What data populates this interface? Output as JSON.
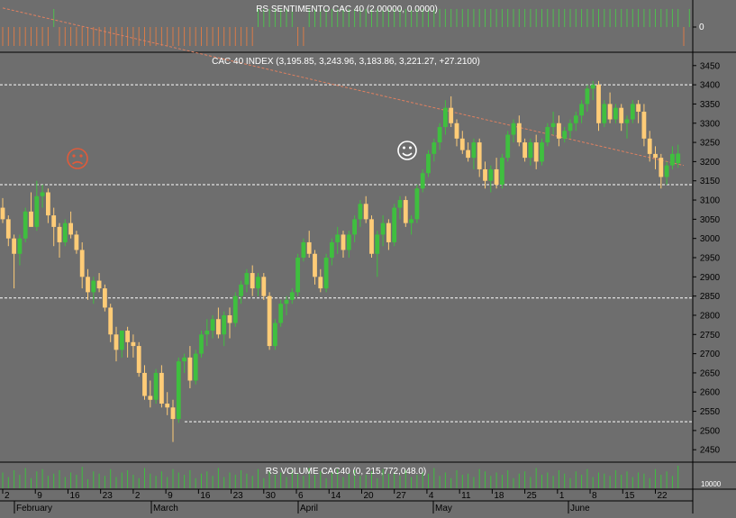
{
  "colors": {
    "background": "#6e6e6e",
    "up": "#3fbf3f",
    "down": "#ffcc77",
    "sentiment_pos": "#4fbf4f",
    "sentiment_neg": "#d97b48",
    "volume": "#3fbf3f",
    "trendline": "#e08060",
    "guide": "#ffffff",
    "frown": "#e05a3a",
    "smile": "#ffffff"
  },
  "icons": {
    "frown": "frown-face-icon",
    "smile": "smile-face-icon"
  },
  "chart_data": [
    {
      "type": "bar",
      "title": "RS SENTIMENTO CAC 40 (2.00000, 0.0000)",
      "y_tick_labels": [
        "0"
      ],
      "values": [
        -1,
        -1,
        -1,
        -1,
        -1,
        -1,
        -1,
        -1,
        -1,
        1,
        -1,
        -1,
        -1,
        -1,
        -1,
        -1,
        -1,
        -1,
        -1,
        -1,
        -1,
        -1,
        -1,
        -1,
        -1,
        -1,
        -1,
        -1,
        -1,
        -1,
        -1,
        -1,
        -1,
        -1,
        -1,
        -1,
        -1,
        -1,
        -1,
        -1,
        -1,
        -1,
        -1,
        -1,
        -1,
        1,
        1,
        1,
        1,
        1,
        1,
        1,
        -1,
        -1,
        1,
        1,
        1,
        1,
        1,
        1,
        1,
        1,
        1,
        1,
        1,
        1,
        1,
        1,
        1,
        1,
        1,
        1,
        1,
        1,
        1,
        1,
        1,
        1,
        1,
        1,
        1,
        1,
        1,
        1,
        1,
        1,
        1,
        1,
        1,
        1,
        1,
        1,
        1,
        1,
        1,
        1,
        1,
        1,
        1,
        1,
        1,
        1,
        1,
        1,
        1,
        1,
        1,
        1,
        1,
        1,
        1,
        1,
        1,
        1,
        1,
        1,
        1,
        1,
        1,
        1,
        -1,
        1
      ]
    },
    {
      "type": "candlestick",
      "title": "CAC 40 INDEX (3,195.85, 3,243.96, 3,183.86, 3,221.27, +27.2100)",
      "y_tick_labels": [
        "3450",
        "3400",
        "3350",
        "3300",
        "3250",
        "3200",
        "3150",
        "3100",
        "3050",
        "3000",
        "2950",
        "2900",
        "2850",
        "2800",
        "2750",
        "2700",
        "2650",
        "2600",
        "2550",
        "2500",
        "2450"
      ],
      "ylim": [
        2420,
        3480
      ],
      "x_tick_labels": [
        "2",
        "9",
        "16",
        "23",
        "2",
        "9",
        "16",
        "23",
        "30",
        "6",
        "14",
        "20",
        "27",
        "4",
        "11",
        "18",
        "25",
        "1",
        "8",
        "15",
        "22"
      ],
      "month_labels": [
        "February",
        "March",
        "April",
        "May",
        "June"
      ],
      "horizontal_levels": [
        3400,
        3140,
        2845,
        2523
      ],
      "trendline": {
        "from": [
          0,
          3600
        ],
        "to": [
          120,
          3190
        ]
      },
      "candles": [
        [
          3080,
          3105,
          3040,
          3050
        ],
        [
          3050,
          3060,
          2980,
          3000
        ],
        [
          3000,
          3010,
          2870,
          2960
        ],
        [
          2960,
          3010,
          2930,
          3000
        ],
        [
          3000,
          3080,
          2990,
          3070
        ],
        [
          3070,
          3120,
          3040,
          3030
        ],
        [
          3030,
          3150,
          3020,
          3110
        ],
        [
          3110,
          3140,
          3080,
          3120
        ],
        [
          3120,
          3130,
          3040,
          3060
        ],
        [
          3060,
          3080,
          2980,
          3030
        ],
        [
          3030,
          3040,
          2950,
          2990
        ],
        [
          2990,
          3050,
          2980,
          3040
        ],
        [
          3040,
          3070,
          3000,
          3010
        ],
        [
          3010,
          3020,
          2960,
          2970
        ],
        [
          2970,
          2990,
          2870,
          2900
        ],
        [
          2900,
          2920,
          2840,
          2860
        ],
        [
          2860,
          2900,
          2830,
          2890
        ],
        [
          2890,
          2910,
          2860,
          2870
        ],
        [
          2870,
          2880,
          2810,
          2820
        ],
        [
          2820,
          2830,
          2730,
          2750
        ],
        [
          2750,
          2770,
          2680,
          2710
        ],
        [
          2710,
          2760,
          2690,
          2760
        ],
        [
          2760,
          2770,
          2690,
          2730
        ],
        [
          2730,
          2750,
          2690,
          2720
        ],
        [
          2720,
          2730,
          2640,
          2650
        ],
        [
          2650,
          2670,
          2580,
          2590
        ],
        [
          2590,
          2630,
          2560,
          2580
        ],
        [
          2580,
          2660,
          2570,
          2650
        ],
        [
          2650,
          2670,
          2560,
          2570
        ],
        [
          2570,
          2600,
          2540,
          2560
        ],
        [
          2560,
          2580,
          2470,
          2530
        ],
        [
          2530,
          2690,
          2520,
          2680
        ],
        [
          2680,
          2700,
          2650,
          2690
        ],
        [
          2690,
          2720,
          2610,
          2630
        ],
        [
          2630,
          2710,
          2620,
          2700
        ],
        [
          2700,
          2760,
          2690,
          2750
        ],
        [
          2750,
          2790,
          2720,
          2760
        ],
        [
          2760,
          2800,
          2740,
          2790
        ],
        [
          2790,
          2820,
          2740,
          2750
        ],
        [
          2750,
          2810,
          2720,
          2800
        ],
        [
          2800,
          2820,
          2740,
          2780
        ],
        [
          2780,
          2860,
          2770,
          2850
        ],
        [
          2850,
          2890,
          2830,
          2880
        ],
        [
          2880,
          2920,
          2860,
          2910
        ],
        [
          2910,
          2930,
          2850,
          2870
        ],
        [
          2870,
          2910,
          2850,
          2900
        ],
        [
          2900,
          2910,
          2840,
          2850
        ],
        [
          2850,
          2860,
          2710,
          2720
        ],
        [
          2720,
          2790,
          2710,
          2780
        ],
        [
          2780,
          2840,
          2770,
          2830
        ],
        [
          2830,
          2850,
          2800,
          2840
        ],
        [
          2840,
          2870,
          2830,
          2860
        ],
        [
          2860,
          2960,
          2850,
          2950
        ],
        [
          2950,
          3000,
          2940,
          2990
        ],
        [
          2990,
          3020,
          2950,
          2960
        ],
        [
          2960,
          2970,
          2880,
          2900
        ],
        [
          2900,
          2920,
          2860,
          2870
        ],
        [
          2870,
          2960,
          2860,
          2950
        ],
        [
          2950,
          3000,
          2930,
          2990
        ],
        [
          2990,
          3030,
          2960,
          3010
        ],
        [
          3010,
          3020,
          2950,
          2970
        ],
        [
          2970,
          3020,
          2950,
          3010
        ],
        [
          3010,
          3060,
          2990,
          3050
        ],
        [
          3050,
          3100,
          3030,
          3090
        ],
        [
          3090,
          3110,
          3040,
          3050
        ],
        [
          3050,
          3060,
          2950,
          2960
        ],
        [
          2960,
          3020,
          2900,
          3010
        ],
        [
          3010,
          3060,
          2980,
          3040
        ],
        [
          3040,
          3050,
          2970,
          2990
        ],
        [
          2990,
          3090,
          2980,
          3080
        ],
        [
          3080,
          3110,
          3050,
          3100
        ],
        [
          3100,
          3110,
          3030,
          3040
        ],
        [
          3040,
          3060,
          3010,
          3050
        ],
        [
          3050,
          3140,
          3040,
          3130
        ],
        [
          3130,
          3180,
          3120,
          3170
        ],
        [
          3170,
          3230,
          3160,
          3220
        ],
        [
          3220,
          3260,
          3200,
          3250
        ],
        [
          3250,
          3300,
          3230,
          3290
        ],
        [
          3290,
          3360,
          3270,
          3340
        ],
        [
          3340,
          3370,
          3290,
          3300
        ],
        [
          3300,
          3310,
          3240,
          3260
        ],
        [
          3260,
          3280,
          3220,
          3230
        ],
        [
          3230,
          3250,
          3200,
          3210
        ],
        [
          3210,
          3260,
          3180,
          3250
        ],
        [
          3250,
          3260,
          3160,
          3180
        ],
        [
          3180,
          3200,
          3130,
          3150
        ],
        [
          3150,
          3190,
          3120,
          3180
        ],
        [
          3180,
          3210,
          3130,
          3140
        ],
        [
          3140,
          3220,
          3130,
          3210
        ],
        [
          3210,
          3280,
          3200,
          3270
        ],
        [
          3270,
          3310,
          3250,
          3300
        ],
        [
          3300,
          3320,
          3240,
          3250
        ],
        [
          3250,
          3260,
          3200,
          3210
        ],
        [
          3210,
          3260,
          3190,
          3250
        ],
        [
          3250,
          3270,
          3180,
          3200
        ],
        [
          3200,
          3260,
          3190,
          3250
        ],
        [
          3250,
          3300,
          3240,
          3290
        ],
        [
          3290,
          3330,
          3270,
          3300
        ],
        [
          3300,
          3320,
          3240,
          3260
        ],
        [
          3260,
          3290,
          3250,
          3280
        ],
        [
          3280,
          3310,
          3260,
          3300
        ],
        [
          3300,
          3330,
          3280,
          3320
        ],
        [
          3320,
          3360,
          3300,
          3350
        ],
        [
          3350,
          3400,
          3330,
          3390
        ],
        [
          3390,
          3410,
          3360,
          3400
        ],
        [
          3400,
          3410,
          3280,
          3300
        ],
        [
          3300,
          3360,
          3290,
          3350
        ],
        [
          3350,
          3380,
          3300,
          3310
        ],
        [
          3310,
          3350,
          3300,
          3340
        ],
        [
          3340,
          3350,
          3280,
          3300
        ],
        [
          3300,
          3320,
          3260,
          3310
        ],
        [
          3310,
          3360,
          3300,
          3350
        ],
        [
          3350,
          3360,
          3300,
          3330
        ],
        [
          3330,
          3350,
          3240,
          3260
        ],
        [
          3260,
          3280,
          3200,
          3220
        ],
        [
          3220,
          3240,
          3180,
          3210
        ],
        [
          3210,
          3220,
          3130,
          3160
        ],
        [
          3160,
          3200,
          3140,
          3190
        ],
        [
          3190,
          3240,
          3180,
          3220
        ],
        [
          3196,
          3244,
          3184,
          3221
        ]
      ]
    },
    {
      "type": "bar",
      "title": "RS VOLUME CAC40 (0, 215,772,048.0)",
      "y_tick_labels": [
        "10000"
      ],
      "values": [
        14,
        10,
        16,
        12,
        18,
        9,
        15,
        17,
        11,
        13,
        16,
        10,
        14,
        12,
        19,
        8,
        15,
        13,
        11,
        17,
        10,
        14,
        16,
        12,
        9,
        18,
        13,
        11,
        15,
        10,
        17,
        14,
        12,
        16,
        9,
        13,
        15,
        11,
        18,
        10,
        14,
        12,
        16,
        13,
        11,
        17,
        9,
        15,
        12,
        14,
        10,
        16,
        13,
        11,
        18,
        12,
        15,
        9,
        14,
        17,
        10,
        13,
        16,
        11,
        12,
        15,
        9,
        17,
        13,
        14,
        11,
        16,
        10,
        12,
        15,
        13,
        18,
        11,
        14,
        9,
        16,
        12,
        13,
        10,
        17,
        15,
        11,
        14,
        12,
        16,
        9,
        13,
        15,
        10,
        18,
        12,
        14,
        11,
        16,
        13,
        9,
        15,
        12,
        17,
        10,
        14,
        13,
        11,
        16,
        12,
        15,
        10,
        14,
        13,
        9,
        17,
        12,
        15,
        11,
        20
      ]
    }
  ]
}
